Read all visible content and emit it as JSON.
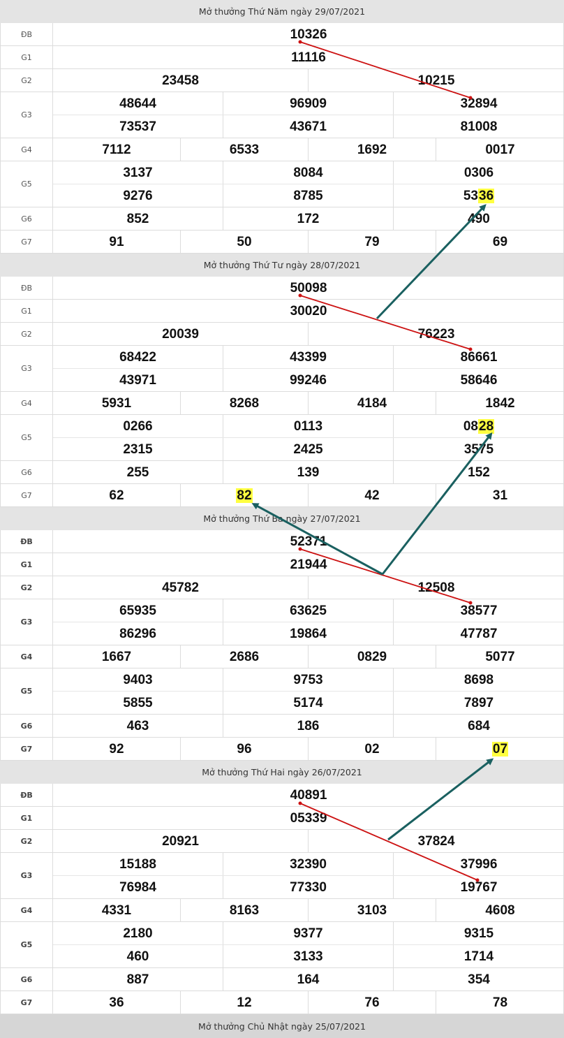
{
  "blocks": [
    {
      "title": "Mở thưởng Thứ Năm ngày 29/07/2021",
      "labels": {
        "db": "ĐB",
        "g1": "G1",
        "g2": "G2",
        "g3": "G3",
        "g4": "G4",
        "g5": "G5",
        "g6": "G6",
        "g7": "G7"
      },
      "db": "10326",
      "g1": "11116",
      "g2": [
        "23458",
        "10215"
      ],
      "g3": [
        "48644",
        "96909",
        "32894",
        "73537",
        "43671",
        "81008"
      ],
      "g4": [
        "7112",
        "6533",
        "1692",
        "0017"
      ],
      "g5": [
        "3137",
        "8084",
        "0306",
        "9276",
        "8785",
        "5336"
      ],
      "g6": [
        "852",
        "172",
        "490"
      ],
      "g7": [
        "91",
        "50",
        "79",
        "69"
      ]
    },
    {
      "title": "Mở thưởng Thứ Tư ngày 28/07/2021",
      "labels": {
        "db": "ĐB",
        "g1": "G1",
        "g2": "G2",
        "g3": "G3",
        "g4": "G4",
        "g5": "G5",
        "g6": "G6",
        "g7": "G7"
      },
      "db": "50098",
      "g1": "30020",
      "g2": [
        "20039",
        "76223"
      ],
      "g3": [
        "68422",
        "43399",
        "86661",
        "43971",
        "99246",
        "58646"
      ],
      "g4": [
        "5931",
        "8268",
        "4184",
        "1842"
      ],
      "g5": [
        "0266",
        "0113",
        "0828",
        "2315",
        "2425",
        "3575"
      ],
      "g6": [
        "255",
        "139",
        "152"
      ],
      "g7": [
        "62",
        "82",
        "42",
        "31"
      ]
    },
    {
      "title": "Mở thưởng Thứ Ba ngày 27/07/2021",
      "labels": {
        "db": "ĐB",
        "g1": "G1",
        "g2": "G2",
        "g3": "G3",
        "g4": "G4",
        "g5": "G5",
        "g6": "G6",
        "g7": "G7"
      },
      "db": "52371",
      "g1": "21944",
      "g2": [
        "45782",
        "12508"
      ],
      "g3": [
        "65935",
        "63625",
        "38577",
        "86296",
        "19864",
        "47787"
      ],
      "g4": [
        "1667",
        "2686",
        "0829",
        "5077"
      ],
      "g5": [
        "9403",
        "9753",
        "8698",
        "5855",
        "5174",
        "7897"
      ],
      "g6": [
        "463",
        "186",
        "684"
      ],
      "g7": [
        "92",
        "96",
        "02",
        "07"
      ]
    },
    {
      "title": "Mở thưởng Thứ Hai ngày 26/07/2021",
      "labels": {
        "db": "ĐB",
        "g1": "G1",
        "g2": "G2",
        "g3": "G3",
        "g4": "G4",
        "g5": "G5",
        "g6": "G6",
        "g7": "G7"
      },
      "db": "40891",
      "g1": "05339",
      "g2": [
        "20921",
        "37824"
      ],
      "g3": [
        "15188",
        "32390",
        "37996",
        "76984",
        "77330",
        "19767"
      ],
      "g4": [
        "4331",
        "8163",
        "3103",
        "4608"
      ],
      "g5": [
        "2180",
        "9377",
        "9315",
        "460",
        "3133",
        "1714"
      ],
      "g6": [
        "887",
        "164",
        "354"
      ],
      "g7": [
        "36",
        "12",
        "76",
        "78"
      ]
    }
  ],
  "footer_title": "Mở thưởng Chủ Nhật ngày 25/07/2021",
  "highlights": [
    {
      "block": 0,
      "prize": "g5",
      "index": 5,
      "digits": "36"
    },
    {
      "block": 1,
      "prize": "g5",
      "index": 2,
      "digits": "28"
    },
    {
      "block": 1,
      "prize": "g7",
      "index": 1,
      "digits": "82"
    },
    {
      "block": 2,
      "prize": "g7",
      "index": 3,
      "digits": "07"
    }
  ],
  "colors": {
    "highlight": "#ffff40",
    "red_line": "#cc1111",
    "teal_arrow": "#1a6060",
    "header_bg": "#e4e4e4",
    "border": "#dcdcdc"
  }
}
